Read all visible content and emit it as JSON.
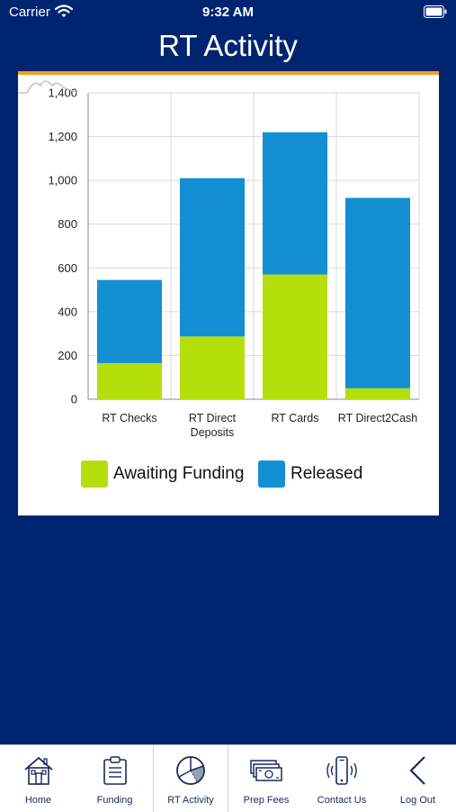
{
  "status_bar": {
    "carrier": "Carrier",
    "time": "9:32 AM"
  },
  "header": {
    "title": "RT Activity"
  },
  "colors": {
    "awaiting": "#b4df0b",
    "released": "#138fd3",
    "background": "#002570",
    "accent": "#f4a01c"
  },
  "chart_data": {
    "type": "bar",
    "stacked": true,
    "categories": [
      "RT Checks",
      "RT Direct Deposits",
      "RT Cards",
      "RT Direct2Cash"
    ],
    "category_lines": [
      [
        "RT Checks"
      ],
      [
        "RT Direct",
        "Deposits"
      ],
      [
        "RT Cards"
      ],
      [
        "RT Direct2Cash"
      ]
    ],
    "series": [
      {
        "name": "Awaiting Funding",
        "values": [
          165,
          287,
          570,
          50
        ]
      },
      {
        "name": "Released",
        "values": [
          380,
          723,
          650,
          870
        ]
      }
    ],
    "ylim": [
      0,
      1400
    ],
    "yticks": [
      0,
      200,
      400,
      600,
      800,
      1000,
      1200,
      1400
    ],
    "ytick_labels": [
      "0",
      "200",
      "400",
      "600",
      "800",
      "1,000",
      "1,200",
      "1,400"
    ],
    "grid": true,
    "legend": "bottom"
  },
  "legend": {
    "awaiting_label": "Awaiting Funding",
    "released_label": "Released"
  },
  "tab_bar": {
    "tabs": [
      {
        "label": "Home",
        "icon": "house-icon"
      },
      {
        "label": "Funding",
        "icon": "clipboard-icon"
      },
      {
        "label": "RT Activity",
        "icon": "pie-chart-icon"
      },
      {
        "label": "Prep Fees",
        "icon": "money-icon"
      },
      {
        "label": "Contact Us",
        "icon": "phone-icon"
      },
      {
        "label": "Log Out",
        "icon": "chevron-left-icon"
      }
    ],
    "selected": "RT Activity"
  }
}
